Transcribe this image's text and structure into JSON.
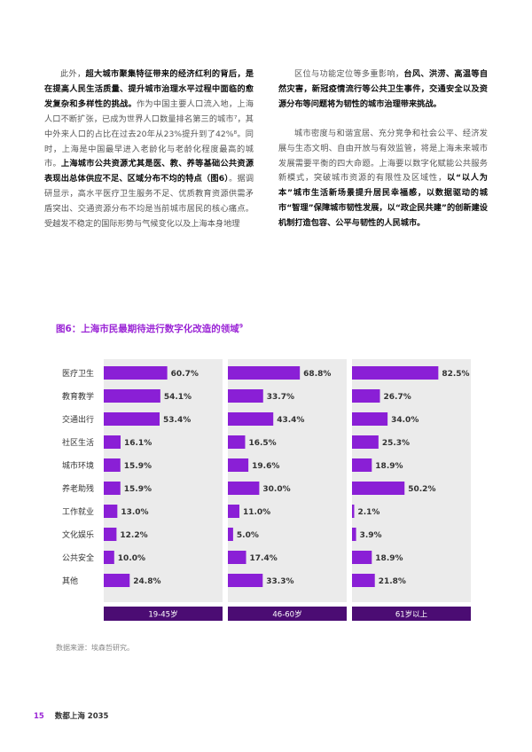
{
  "body": {
    "left": [
      [
        {
          "t": "此外，",
          "b": false
        },
        {
          "t": "超大城市聚集特征带来的经济红利的背后，是在提高人民生活质量、提升城市治理水平过程中面临的愈发复杂和多样性的挑战。",
          "b": true
        },
        {
          "t": "作为中国主要人口流入地，上海人口不断扩张，已成为世界人口数量排名第三的城市⁷，其中外来人口的占比在过去20年从23%提升到了42%⁸。同时，上海是中国最早进入老龄化与老龄化程度最高的城市。",
          "b": false
        },
        {
          "t": "上海城市公共资源尤其是医、教、养等基础公共资源表现出总体供应不足、区域分布不均的特点（图6）",
          "b": true
        },
        {
          "t": "。据调研显示，高水平医疗卫生服务不足、优质教育资源供需矛盾突出、交通资源分布不均是当前城市居民的核心痛点。受越发不稳定的国际形势与气候变化以及上海本身地理",
          "b": false
        }
      ]
    ],
    "right": [
      [
        {
          "t": "区位与功能定位等多重影响，",
          "b": false
        },
        {
          "t": "台风、洪涝、高温等自然灾害，新冠疫情流行等公共卫生事件，交通安全以及资源分布等问题将为韧性的城市治理带来挑战。",
          "b": true
        }
      ],
      [
        {
          "t": "城市密度与和谐宜居、充分竞争和社会公平、经济发展与生态文明、自由开放与有效监管，将是上海未来城市发展需要平衡的四大命题。上海要以数字化赋能公共服务新模式，突破城市资源的有限性及区域性，",
          "b": false
        },
        {
          "t": "以“以人为本”城市生活新场景提升居民幸福感，以数据驱动的城市“智理”保障城市韧性发展，以“政企民共建”的创新建设机制打造包容、公平与韧性的人民城市。",
          "b": true
        }
      ]
    ]
  },
  "figure": {
    "title": "图6：上海市民最期待进行数字化改造的领域",
    "title_sup": "9"
  },
  "chart_data": {
    "type": "bar",
    "orientation": "horizontal",
    "title": "图6：上海市民最期待进行数字化改造的领域",
    "categories": [
      "医疗卫生",
      "教育教学",
      "交通出行",
      "社区生活",
      "城市环境",
      "养老助残",
      "工作就业",
      "文化娱乐",
      "公共安全",
      "其他"
    ],
    "series": [
      {
        "name": "19-45岁",
        "values": [
          60.7,
          54.1,
          53.4,
          16.1,
          15.9,
          15.9,
          13.0,
          12.2,
          10.0,
          24.8
        ]
      },
      {
        "name": "46-60岁",
        "values": [
          68.8,
          33.7,
          43.4,
          16.5,
          19.6,
          30.0,
          11.0,
          5.0,
          17.4,
          33.3
        ]
      },
      {
        "name": "61岁以上",
        "values": [
          82.5,
          26.7,
          34.0,
          25.3,
          18.9,
          50.2,
          2.1,
          3.9,
          18.9,
          21.8
        ]
      }
    ],
    "value_suffix": "%",
    "xlim": [
      0,
      100
    ],
    "colors": {
      "bar": "#8a1fd6",
      "panel": "#ebebeb",
      "header": "#4b0c73",
      "header_text": "#ffffff"
    }
  },
  "source": "数据来源：埃森哲研究。",
  "footer": {
    "page_number": "15",
    "title": "数都上海 2035"
  }
}
